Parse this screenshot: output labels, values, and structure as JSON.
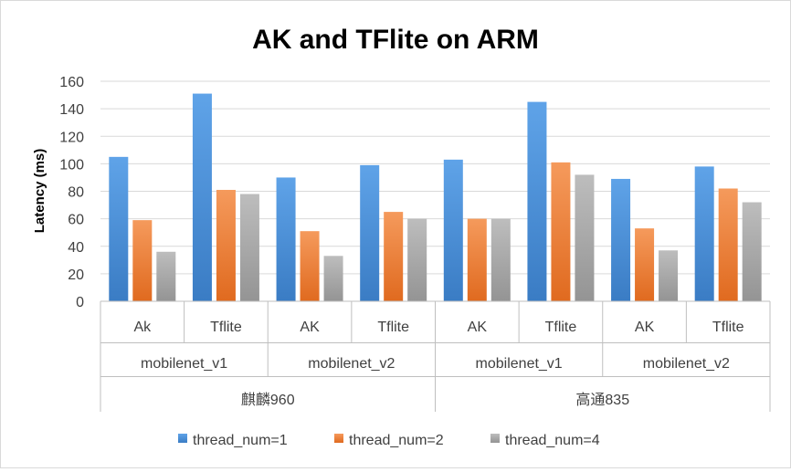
{
  "chart_data": {
    "type": "bar",
    "title": "AK and TFlite on ARM",
    "ylabel": "Latency (ms)",
    "xlabel": "",
    "ylim": [
      0,
      160
    ],
    "yticks": [
      0,
      20,
      40,
      60,
      80,
      100,
      120,
      140,
      160
    ],
    "grid": true,
    "legend_position": "bottom",
    "categories": [
      "麒麟960 / mobilenet_v1 / Ak",
      "麒麟960 / mobilenet_v1 / Tflite",
      "麒麟960 / mobilenet_v2 / AK",
      "麒麟960 / mobilenet_v2 / Tflite",
      "高通835 / mobilenet_v1 / AK",
      "高通835 / mobilenet_v1 / Tflite",
      "高通835 / mobilenet_v2 / AK",
      "高通835 / mobilenet_v2 / Tflite"
    ],
    "category_levels": {
      "level1": [
        "Ak",
        "Tflite",
        "AK",
        "Tflite",
        "AK",
        "Tflite",
        "AK",
        "Tflite"
      ],
      "level2": [
        "mobilenet_v1",
        "mobilenet_v2",
        "mobilenet_v1",
        "mobilenet_v2"
      ],
      "level3": [
        "麒麟960",
        "高通835"
      ]
    },
    "series": [
      {
        "name": "thread_num=1",
        "color": "#4a90d9",
        "values": [
          105,
          151,
          90,
          99,
          103,
          145,
          89,
          98
        ]
      },
      {
        "name": "thread_num=2",
        "color": "#ed7d31",
        "values": [
          59,
          81,
          51,
          65,
          60,
          101,
          53,
          82
        ]
      },
      {
        "name": "thread_num=4",
        "color": "#a5a5a5",
        "values": [
          36,
          78,
          33,
          60,
          60,
          92,
          37,
          72
        ]
      }
    ]
  }
}
